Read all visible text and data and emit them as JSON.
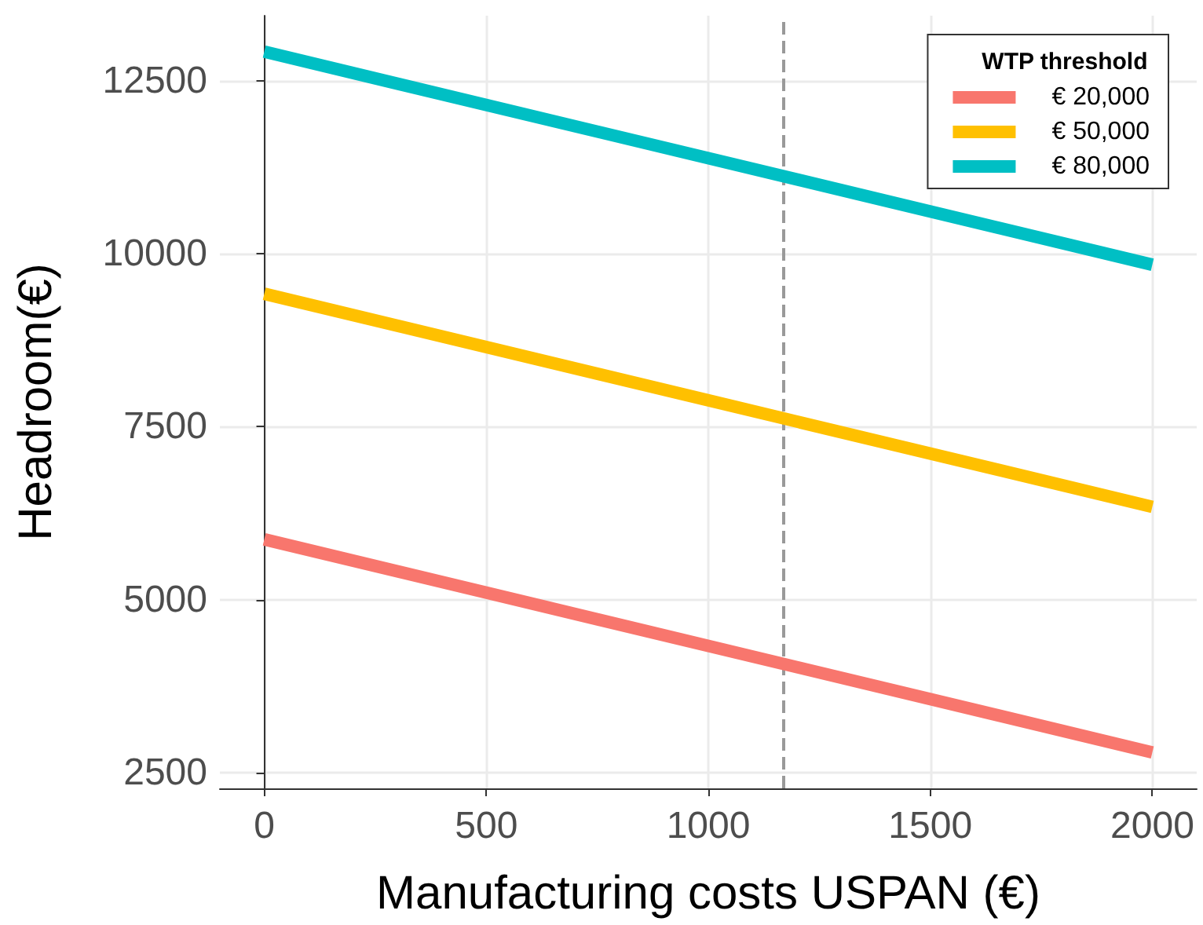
{
  "chart_data": {
    "type": "line",
    "xlabel": "Manufacturing costs USPAN (€)",
    "ylabel": "Headroom(€)",
    "legend_title": "WTP threshold",
    "x": [
      0,
      2000
    ],
    "series": [
      {
        "name": "€ 20,000",
        "color": "#f8766d",
        "values": [
          5870,
          2790
        ]
      },
      {
        "name": "€ 50,000",
        "color": "#ffc000",
        "values": [
          9420,
          6340
        ]
      },
      {
        "name": "€ 80,000",
        "color": "#00bfc4",
        "values": [
          12920,
          9840
        ]
      }
    ],
    "xlim": [
      -100,
      2100
    ],
    "xticks": [
      0,
      500,
      1000,
      1500,
      2000
    ],
    "ylim": [
      2270,
      13440
    ],
    "yticks": [
      2500,
      5000,
      7500,
      10000,
      12500
    ],
    "ref_lines": [
      {
        "axis": "x",
        "value": 1170,
        "color": "#999999",
        "line_style": "dashed"
      }
    ],
    "grid": true,
    "legend": "top right",
    "marker": "none",
    "line_style": "solid"
  }
}
